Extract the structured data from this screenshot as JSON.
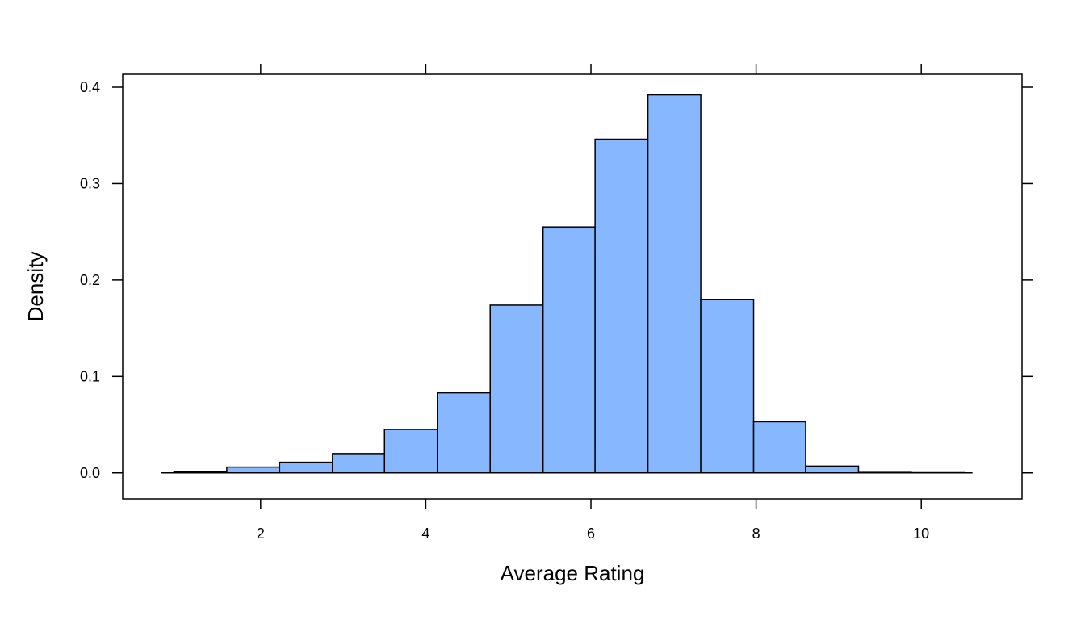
{
  "chart_data": {
    "type": "bar",
    "subtype": "histogram",
    "title": "",
    "xlabel": "Average Rating",
    "ylabel": "Density",
    "xlim": [
      0.33,
      11.22
    ],
    "ylim": [
      -0.027,
      0.4134
    ],
    "x_ticks": [
      2,
      4,
      6,
      8,
      10
    ],
    "y_ticks": [
      0.0,
      0.1,
      0.2,
      0.3,
      0.4
    ],
    "x_tick_labels": [
      "2",
      "4",
      "6",
      "8",
      "10"
    ],
    "y_tick_labels": [
      "0.0",
      "0.1",
      "0.2",
      "0.3",
      "0.4"
    ],
    "bin_edges": [
      0.95,
      1.59,
      2.23,
      2.87,
      3.5,
      4.14,
      4.78,
      5.42,
      6.05,
      6.69,
      7.33,
      7.97,
      8.6,
      9.24,
      9.88,
      10.52
    ],
    "values": [
      0.001,
      0.006,
      0.011,
      0.02,
      0.045,
      0.083,
      0.174,
      0.255,
      0.346,
      0.392,
      0.18,
      0.053,
      0.007,
      0.0005,
      0.0002
    ],
    "bar_color": "#87b8ff",
    "edge_color": "#000000",
    "grid": false,
    "legend": "none"
  }
}
